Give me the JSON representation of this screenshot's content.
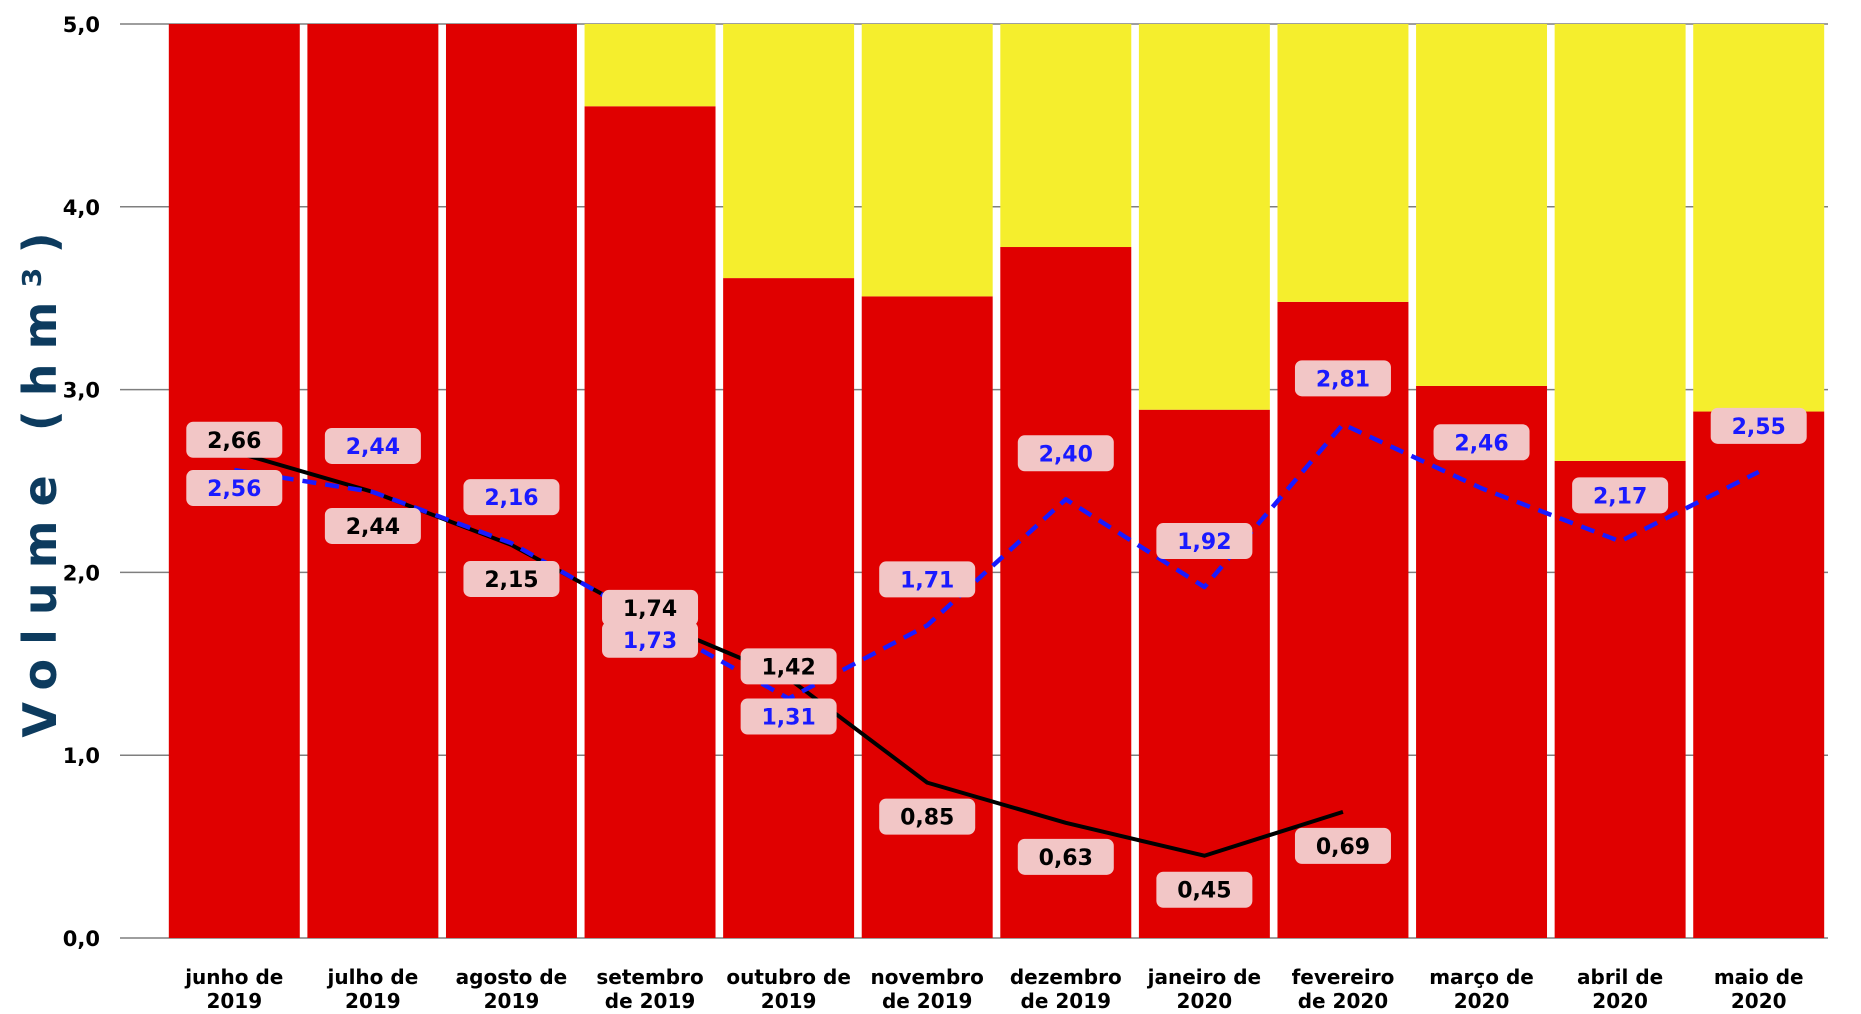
{
  "chart_data": {
    "type": "bar",
    "ylabel": "Volume (hm³)",
    "ylim": [
      0,
      5
    ],
    "yticks": [
      "0,0",
      "1,0",
      "2,0",
      "3,0",
      "4,0",
      "5,0"
    ],
    "categories": [
      [
        "junho de",
        "2019"
      ],
      [
        "julho de",
        "2019"
      ],
      [
        "agosto de",
        "2019"
      ],
      [
        "setembro",
        "de 2019"
      ],
      [
        "outubro de",
        "2019"
      ],
      [
        "novembro",
        "de 2019"
      ],
      [
        "dezembro",
        "de 2019"
      ],
      [
        "janeiro de",
        "2020"
      ],
      [
        "fevereiro",
        "de 2020"
      ],
      [
        "março de",
        "2020"
      ],
      [
        "abril de",
        "2020"
      ],
      [
        "maio de",
        "2020"
      ]
    ],
    "stacked_bars": {
      "red_zone": [
        5.0,
        5.0,
        5.0,
        4.55,
        3.61,
        3.51,
        3.78,
        2.89,
        3.48,
        3.02,
        2.61,
        2.88
      ],
      "yellow_zone": [
        0.0,
        0.0,
        0.0,
        0.45,
        1.39,
        1.49,
        1.22,
        2.11,
        1.52,
        1.98,
        2.39,
        2.12
      ]
    },
    "series": [
      {
        "style": "solid-black",
        "values": [
          2.66,
          2.44,
          2.15,
          1.74,
          1.42,
          0.85,
          0.63,
          0.45,
          0.69,
          null,
          null,
          null
        ],
        "labels": [
          "2,66",
          "2,44",
          "2,15",
          "1,74",
          "1,42",
          "0,85",
          "0,63",
          "0,45",
          "0,69",
          "",
          "",
          ""
        ]
      },
      {
        "style": "dashed-blue",
        "values": [
          2.56,
          2.44,
          2.16,
          1.73,
          1.31,
          1.71,
          2.4,
          1.92,
          2.81,
          2.46,
          2.17,
          2.55
        ],
        "labels": [
          "2,56",
          "2,44",
          "2,16",
          "1,73",
          "1,31",
          "1,71",
          "2,40",
          "1,92",
          "2,81",
          "2,46",
          "2,17",
          "2,55"
        ]
      }
    ],
    "grid": true,
    "legend": "none"
  },
  "colors": {
    "red_zone": "#e00000",
    "yellow_zone": "#f5ee2d",
    "solid_line": "#000000",
    "dashed_line": "#1a1aff",
    "label_box": "#f2c6c6",
    "grid": "#7f7f7f",
    "ylabel": "#0d3b5e"
  }
}
